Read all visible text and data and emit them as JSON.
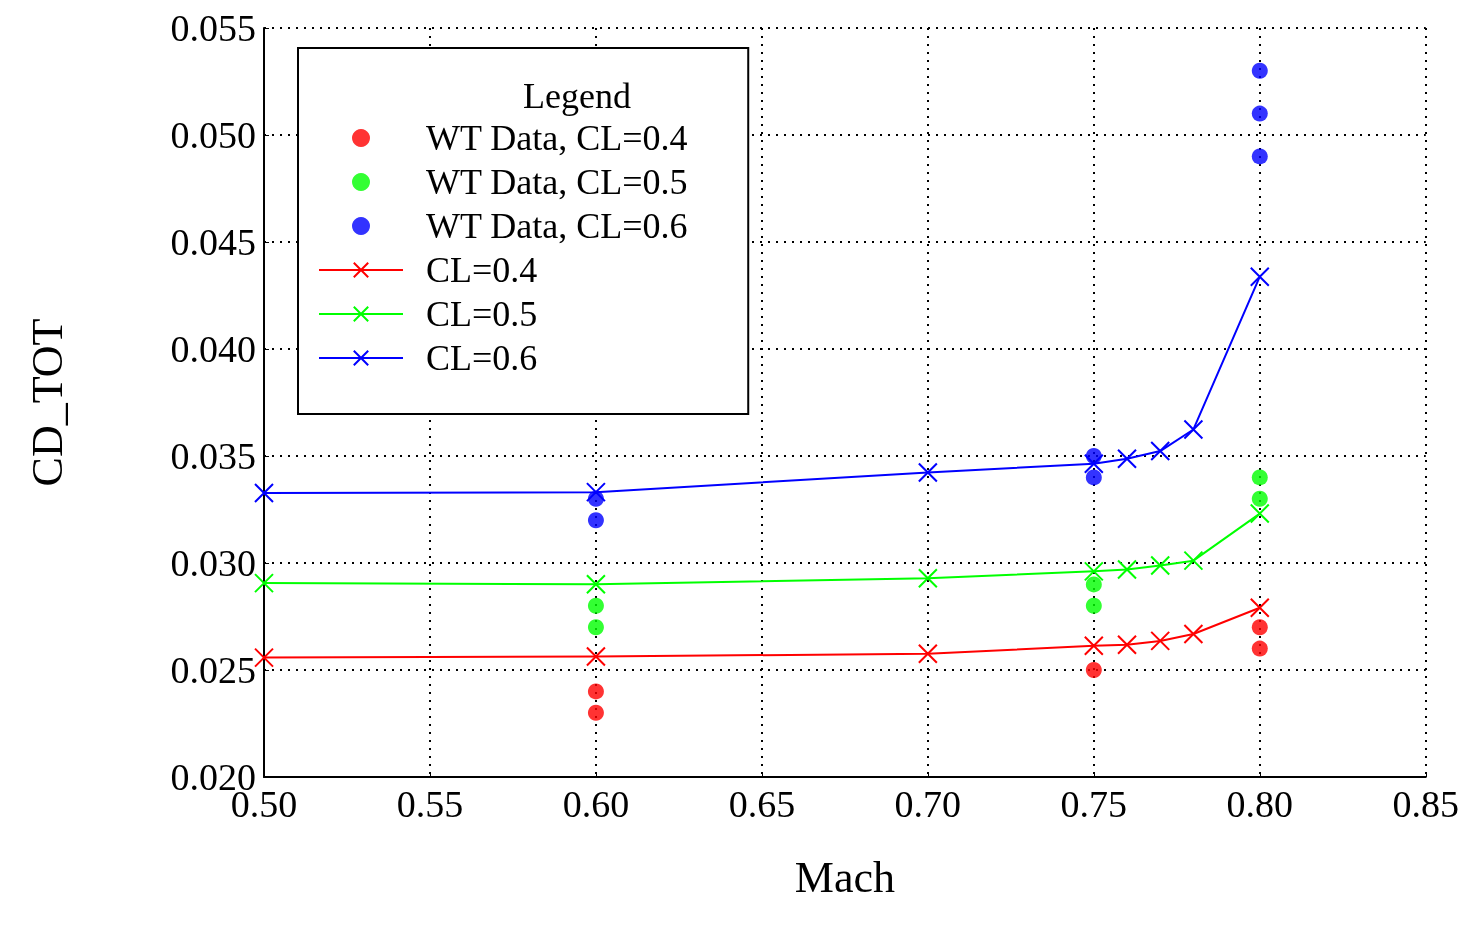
{
  "chart_data": {
    "type": "line",
    "xlabel": "Mach",
    "ylabel": "CD_TOT",
    "legend_title": "Legend",
    "legend": "top left",
    "grid": true,
    "xlim": [
      0.5,
      0.85
    ],
    "xticks": [
      {
        "value": 0.5,
        "label": "0.50"
      },
      {
        "value": 0.55,
        "label": "0.55"
      },
      {
        "value": 0.6,
        "label": "0.60"
      },
      {
        "value": 0.65,
        "label": "0.65"
      },
      {
        "value": 0.7,
        "label": "0.70"
      },
      {
        "value": 0.75,
        "label": "0.75"
      },
      {
        "value": 0.8,
        "label": "0.80"
      },
      {
        "value": 0.85,
        "label": "0.85"
      }
    ],
    "ylim": [
      0.02,
      0.055
    ],
    "yticks": [
      {
        "value": 0.02,
        "label": "0.020"
      },
      {
        "value": 0.025,
        "label": "0.025"
      },
      {
        "value": 0.03,
        "label": "0.030"
      },
      {
        "value": 0.035,
        "label": "0.035"
      },
      {
        "value": 0.04,
        "label": "0.040"
      },
      {
        "value": 0.045,
        "label": "0.045"
      },
      {
        "value": 0.05,
        "label": "0.050"
      },
      {
        "value": 0.055,
        "label": "0.055"
      }
    ],
    "series": [
      {
        "name": "WT Data, CL=0.4",
        "type": "scatter",
        "marker": "circle",
        "color": "#ff0000",
        "x": [
          0.6,
          0.6,
          0.75,
          0.8,
          0.8
        ],
        "values": [
          0.024,
          0.023,
          0.025,
          0.027,
          0.026
        ]
      },
      {
        "name": "WT Data, CL=0.5",
        "type": "scatter",
        "marker": "circle",
        "color": "#00ff00",
        "x": [
          0.6,
          0.6,
          0.75,
          0.75,
          0.8,
          0.8
        ],
        "values": [
          0.028,
          0.027,
          0.029,
          0.028,
          0.034,
          0.033
        ]
      },
      {
        "name": "WT Data, CL=0.6",
        "type": "scatter",
        "marker": "circle",
        "color": "#0000ff",
        "x": [
          0.6,
          0.6,
          0.75,
          0.75,
          0.8,
          0.8,
          0.8
        ],
        "values": [
          0.033,
          0.032,
          0.035,
          0.034,
          0.053,
          0.051,
          0.049
        ]
      },
      {
        "name": "CL=0.4",
        "marker": "cross",
        "color": "#ff0000",
        "x": [
          0.5,
          0.6,
          0.7,
          0.75,
          0.76,
          0.77,
          0.78,
          0.8
        ],
        "values": [
          0.02558,
          0.02563,
          0.02576,
          0.02613,
          0.02618,
          0.02636,
          0.02668,
          0.02791
        ]
      },
      {
        "name": "CL=0.5",
        "marker": "cross",
        "color": "#00ff00",
        "x": [
          0.5,
          0.6,
          0.7,
          0.75,
          0.76,
          0.77,
          0.78,
          0.8
        ],
        "values": [
          0.02906,
          0.02901,
          0.02929,
          0.02961,
          0.0297,
          0.02988,
          0.03011,
          0.03231
        ]
      },
      {
        "name": "CL=0.6",
        "marker": "cross",
        "color": "#0000ff",
        "x": [
          0.5,
          0.6,
          0.7,
          0.75,
          0.76,
          0.77,
          0.78,
          0.8
        ],
        "values": [
          0.03327,
          0.03331,
          0.03423,
          0.03464,
          0.03487,
          0.03523,
          0.03624,
          0.04338
        ]
      }
    ]
  }
}
